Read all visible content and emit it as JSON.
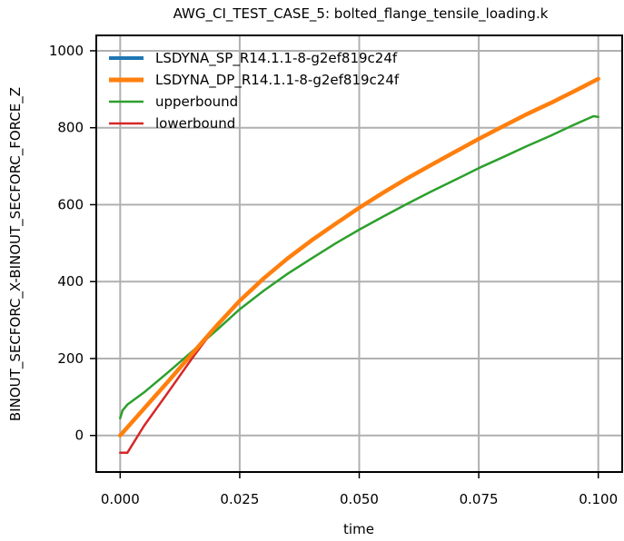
{
  "chart_data": {
    "type": "line",
    "title": "AWG_CI_TEST_CASE_5: bolted_flange_tensile_loading.k",
    "xlabel": "time",
    "ylabel": "BINOUT_SECFORC_X-BINOUT_SECFORC_FORCE_Z",
    "xlim": [
      -0.005,
      0.105
    ],
    "ylim": [
      -95,
      1040
    ],
    "xticks": [
      0.0,
      0.025,
      0.05,
      0.075,
      0.1
    ],
    "xtick_labels": [
      "0.000",
      "0.025",
      "0.050",
      "0.075",
      "0.100"
    ],
    "yticks": [
      0,
      200,
      400,
      600,
      800,
      1000
    ],
    "ytick_labels": [
      "0",
      "200",
      "400",
      "600",
      "800",
      "1000"
    ],
    "grid": true,
    "legend_position": "top-left",
    "series": [
      {
        "name": "LSDYNA_SP_R14.1.1-8-g2ef819c24f",
        "color": "#1f77b4",
        "x": [
          0.0,
          0.005,
          0.01,
          0.015,
          0.02,
          0.025,
          0.03,
          0.035,
          0.04,
          0.045,
          0.05,
          0.055,
          0.06,
          0.065,
          0.07,
          0.075,
          0.08,
          0.085,
          0.09,
          0.095,
          0.1
        ],
        "y": [
          0,
          70,
          140,
          212,
          283,
          350,
          408,
          460,
          507,
          550,
          592,
          631,
          668,
          703,
          737,
          771,
          803,
          835,
          864,
          895,
          925
        ]
      },
      {
        "name": "LSDYNA_DP_R14.1.1-8-g2ef819c24f",
        "color": "#ff7f0e",
        "x": [
          0.0,
          0.005,
          0.01,
          0.015,
          0.02,
          0.025,
          0.03,
          0.035,
          0.04,
          0.045,
          0.05,
          0.055,
          0.06,
          0.065,
          0.07,
          0.075,
          0.08,
          0.085,
          0.09,
          0.095,
          0.1
        ],
        "y": [
          0,
          70,
          140,
          212,
          283,
          350,
          408,
          460,
          507,
          550,
          592,
          631,
          668,
          703,
          737,
          771,
          803,
          835,
          864,
          895,
          927
        ]
      },
      {
        "name": "upperbound",
        "color": "#2ca02c",
        "x": [
          0.0,
          0.0005,
          0.0015,
          0.005,
          0.01,
          0.015,
          0.02,
          0.025,
          0.03,
          0.035,
          0.04,
          0.045,
          0.05,
          0.055,
          0.06,
          0.065,
          0.07,
          0.075,
          0.08,
          0.085,
          0.09,
          0.095,
          0.099,
          0.1
        ],
        "y": [
          45,
          65,
          80,
          112,
          164,
          218,
          272,
          328,
          376,
          420,
          460,
          499,
          535,
          569,
          602,
          634,
          664,
          695,
          723,
          752,
          779,
          808,
          830,
          828
        ]
      },
      {
        "name": "lowerbound",
        "color": "#d62728",
        "x": [
          0.0,
          0.0015,
          0.005,
          0.01,
          0.015,
          0.02,
          0.025,
          0.03,
          0.035,
          0.04,
          0.045,
          0.05,
          0.055,
          0.06,
          0.065,
          0.07,
          0.075,
          0.08,
          0.085,
          0.09,
          0.095,
          0.097,
          0.1
        ],
        "y": [
          -45,
          -45,
          25,
          112,
          200,
          283,
          350,
          408,
          460,
          507,
          550,
          592,
          631,
          668,
          703,
          737,
          771,
          803,
          835,
          864,
          895,
          905,
          927
        ]
      }
    ]
  }
}
